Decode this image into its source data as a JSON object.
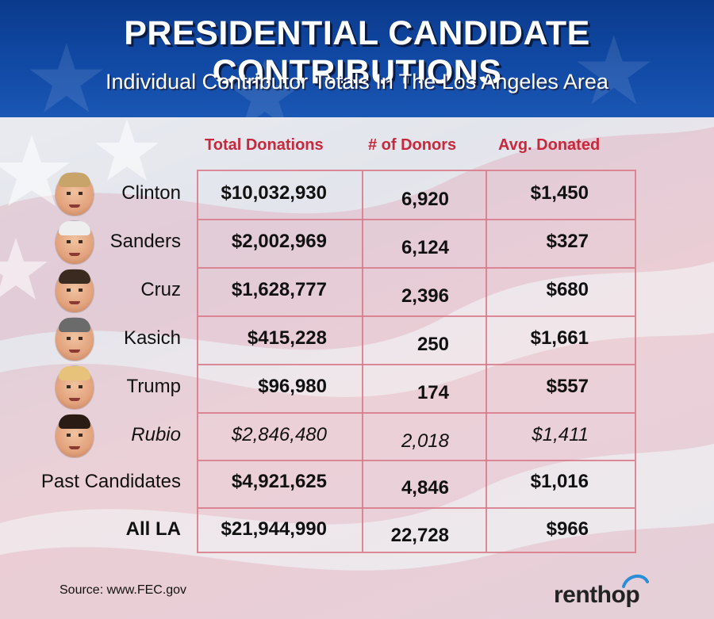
{
  "header": {
    "title": "PRESIDENTIAL CANDIDATE CONTRIBUTIONS",
    "subtitle": "Individual Contributor Totals In The Los Angeles Area"
  },
  "columns": {
    "total": "Total Donations",
    "donors": "# of Donors",
    "avg": "Avg. Donated"
  },
  "rows": [
    {
      "name": "Clinton",
      "total": "$10,032,930",
      "donors": "6,920",
      "avg": "$1,450",
      "style": "normal",
      "avatar": "clinton-portrait"
    },
    {
      "name": "Sanders",
      "total": "$2,002,969",
      "donors": "6,124",
      "avg": "$327",
      "style": "normal",
      "avatar": "sanders-portrait"
    },
    {
      "name": "Cruz",
      "total": "$1,628,777",
      "donors": "2,396",
      "avg": "$680",
      "style": "normal",
      "avatar": "cruz-portrait"
    },
    {
      "name": "Kasich",
      "total": "$415,228",
      "donors": "250",
      "avg": "$1,661",
      "style": "normal",
      "avatar": "kasich-portrait"
    },
    {
      "name": "Trump",
      "total": "$96,980",
      "donors": "174",
      "avg": "$557",
      "style": "normal",
      "avatar": "trump-portrait"
    },
    {
      "name": "Rubio",
      "total": "$2,846,480",
      "donors": "2,018",
      "avg": "$1,411",
      "style": "italic",
      "avatar": "rubio-portrait"
    },
    {
      "name": "Past Candidates",
      "total": "$4,921,625",
      "donors": "4,846",
      "avg": "$1,016",
      "style": "normal",
      "avatar": ""
    },
    {
      "name": "All LA",
      "total": "$21,944,990",
      "donors": "22,728",
      "avg": "$966",
      "style": "bold",
      "avatar": ""
    }
  ],
  "footer": {
    "source": "Source: www.FEC.gov",
    "logo": "renthop"
  },
  "colors": {
    "header_blue": "#114aa5",
    "column_header_red": "#c8283c",
    "grid_line": "#d77887"
  }
}
